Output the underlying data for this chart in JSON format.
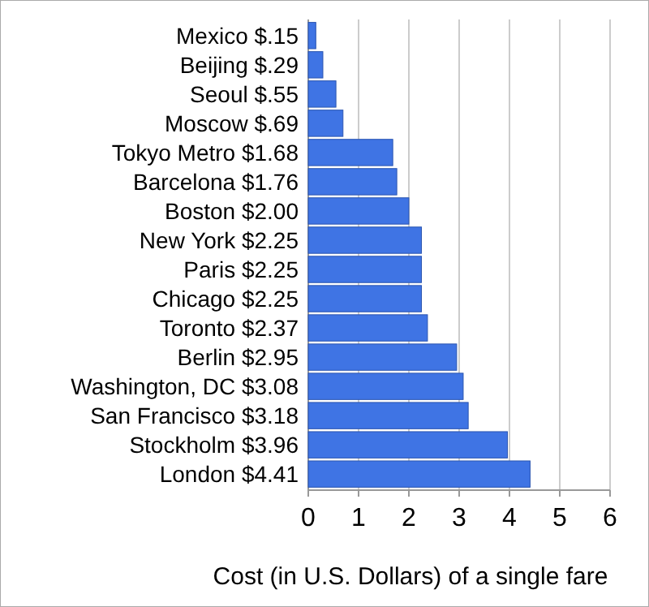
{
  "chart_data": {
    "type": "bar",
    "orientation": "horizontal",
    "xlabel": "Cost (in U.S. Dollars) of a single fare",
    "categories": [
      "Mexico $.15",
      "Beijing $.29",
      "Seoul $.55",
      "Moscow $.69",
      "Tokyo Metro $1.68",
      "Barcelona $1.76",
      "Boston $2.00",
      "New York $2.25",
      "Paris $2.25",
      "Chicago $2.25",
      "Toronto $2.37",
      "Berlin $2.95",
      "Washington, DC $3.08",
      "San Francisco $3.18",
      "Stockholm $3.96",
      "London $4.41"
    ],
    "values": [
      0.15,
      0.29,
      0.55,
      0.69,
      1.68,
      1.76,
      2.0,
      2.25,
      2.25,
      2.25,
      2.37,
      2.95,
      3.08,
      3.18,
      3.96,
      4.41
    ],
    "color": "#3f74e4",
    "xlim": [
      0,
      6
    ],
    "xticks": [
      0,
      1,
      2,
      3,
      4,
      5,
      6
    ],
    "grid": "x"
  }
}
